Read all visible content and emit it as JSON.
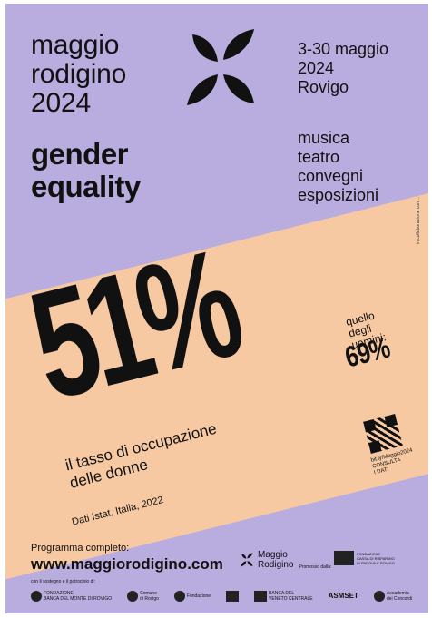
{
  "event": {
    "title": "maggio\nrodigino\n2024",
    "theme": "gender\nequality",
    "dates": "3-30 maggio\n2024\nRovigo",
    "disciplines": "musica\nteatro\nconvegni\nesposizioni"
  },
  "statistic": {
    "main_value": "51%",
    "description": "il tasso di occupazione\ndelle donne",
    "source": "Dati Istat, Italia, 2022",
    "comparison_label": "quello\ndegli\nuomini:",
    "comparison_value": "69%"
  },
  "qr": {
    "caption": "bit.ly/Maggio2024\nCONSULTA\nI DATI"
  },
  "credit": "in collaborazione con ...",
  "program": {
    "label": "Programma completo:",
    "website": "www.maggiorodigino.com"
  },
  "brand": {
    "name": "Maggio\nRodigino",
    "sub": "Promosso dalla:"
  },
  "foundation": {
    "text": "FONDAZIONE\nCASSA DI RISPARMIO\nDI PADOVA E ROVIGO"
  },
  "partners": {
    "label": "con il sostegno e il patrocinio di:",
    "items": [
      "FONDAZIONE\nBANCA DEL MONTE DI ROVIGO",
      "Comune\ndi Rovigo",
      "Fondazione",
      "",
      "BANCA DEL\nVENETO CENTRALE",
      "ASMSET",
      "Accademia\ndei Concordi"
    ]
  },
  "colors": {
    "background": "#b9acdf",
    "band": "#f7c9a2",
    "text": "#111111"
  }
}
